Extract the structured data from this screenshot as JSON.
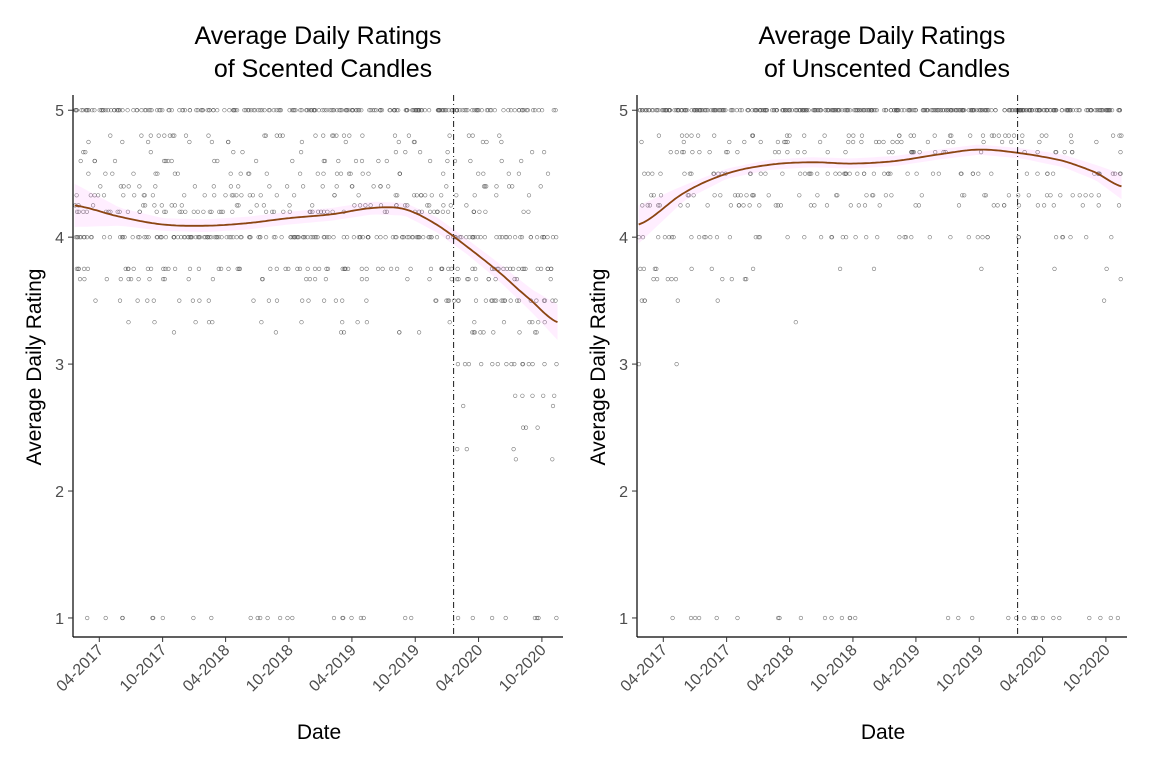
{
  "colors": {
    "smooth_line": "#8B4513",
    "ribbon": "#FFC0FF",
    "points": "#555555"
  },
  "chart_data": [
    {
      "type": "scatter",
      "id": "scented",
      "title_line1": "Average Daily Ratings",
      "title_line2": "of Scented Candles",
      "xlabel": "Date",
      "ylabel": "Average Daily Rating",
      "xlim": [
        "2017-01-15",
        "2020-12-01"
      ],
      "ylim": [
        0.85,
        5.12
      ],
      "x_ticks": [
        "2017-04-01",
        "2017-10-01",
        "2018-04-01",
        "2018-10-01",
        "2019-04-01",
        "2019-10-01",
        "2020-04-01",
        "2020-10-01"
      ],
      "x_tick_labels": [
        "04-2017",
        "10-2017",
        "04-2018",
        "10-2018",
        "04-2019",
        "10-2019",
        "04-2020",
        "10-2020"
      ],
      "y_ticks": [
        1,
        2,
        3,
        4,
        5
      ],
      "y_tick_labels": [
        "1",
        "2",
        "3",
        "4",
        "5"
      ],
      "reference_line_x": "2020-01-20",
      "grid": false,
      "legend": "none",
      "point_generation": {
        "date_range": [
          "2017-01-20",
          "2020-11-15"
        ],
        "levels": [
          1,
          1.5,
          2,
          2.25,
          2.33,
          2.5,
          2.67,
          2.75,
          3,
          3.25,
          3.33,
          3.5,
          3.67,
          3.75,
          4,
          4.2,
          4.25,
          4.33,
          4.4,
          4.5,
          4.6,
          4.67,
          4.75,
          4.8,
          5
        ],
        "count": 900
      },
      "smooth_line": {
        "x": [
          "2017-01-20",
          "2017-06-01",
          "2017-10-01",
          "2018-02-01",
          "2018-06-01",
          "2018-10-01",
          "2019-02-01",
          "2019-06-01",
          "2019-09-01",
          "2019-12-01",
          "2020-03-01",
          "2020-06-01",
          "2020-09-01",
          "2020-11-15"
        ],
        "y": [
          4.25,
          4.16,
          4.1,
          4.09,
          4.11,
          4.15,
          4.18,
          4.23,
          4.22,
          4.1,
          3.92,
          3.72,
          3.5,
          3.33
        ],
        "ci_halfwidth": [
          0.17,
          0.07,
          0.05,
          0.05,
          0.05,
          0.05,
          0.05,
          0.05,
          0.05,
          0.06,
          0.06,
          0.07,
          0.09,
          0.14
        ]
      }
    },
    {
      "type": "scatter",
      "id": "unscented",
      "title_line1": "Average Daily Ratings",
      "title_line2": "of Unscented Candles",
      "xlabel": "Date",
      "ylabel": "Average Daily Rating",
      "xlim": [
        "2017-01-15",
        "2020-12-01"
      ],
      "ylim": [
        0.85,
        5.12
      ],
      "x_ticks": [
        "2017-04-01",
        "2017-10-01",
        "2018-04-01",
        "2018-10-01",
        "2019-04-01",
        "2019-10-01",
        "2020-04-01",
        "2020-10-01"
      ],
      "x_tick_labels": [
        "04-2017",
        "10-2017",
        "04-2018",
        "10-2018",
        "04-2019",
        "10-2019",
        "04-2020",
        "10-2020"
      ],
      "y_ticks": [
        1,
        2,
        3,
        4,
        5
      ],
      "y_tick_labels": [
        "1",
        "2",
        "3",
        "4",
        "5"
      ],
      "reference_line_x": "2020-01-20",
      "grid": false,
      "legend": "none",
      "point_generation": {
        "date_range": [
          "2017-01-20",
          "2020-11-15"
        ],
        "levels": [
          1,
          2,
          2.33,
          2.67,
          3,
          3.33,
          3.5,
          3.67,
          3.75,
          4,
          4.25,
          4.33,
          4.5,
          4.67,
          4.75,
          4.8,
          5
        ],
        "count": 720
      },
      "smooth_line": {
        "x": [
          "2017-01-20",
          "2017-06-01",
          "2017-10-01",
          "2018-02-01",
          "2018-06-01",
          "2018-10-01",
          "2019-02-01",
          "2019-06-01",
          "2019-10-01",
          "2020-02-01",
          "2020-06-01",
          "2020-09-01",
          "2020-11-15"
        ],
        "y": [
          4.1,
          4.35,
          4.5,
          4.57,
          4.59,
          4.58,
          4.6,
          4.65,
          4.69,
          4.66,
          4.6,
          4.51,
          4.4
        ],
        "ci_halfwidth": [
          0.15,
          0.06,
          0.04,
          0.04,
          0.04,
          0.04,
          0.04,
          0.04,
          0.04,
          0.04,
          0.05,
          0.06,
          0.1
        ]
      }
    }
  ]
}
